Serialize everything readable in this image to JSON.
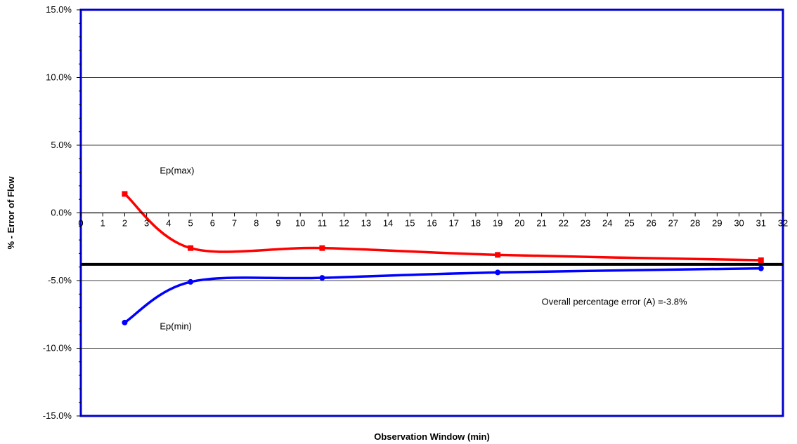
{
  "chart_data": {
    "type": "line",
    "title": "",
    "xlabel": "Observation Window (min)",
    "ylabel": "% - Error of Flow",
    "xlim": [
      0,
      32
    ],
    "ylim": [
      -15,
      15
    ],
    "x_ticks": [
      "0",
      "1",
      "2",
      "3",
      "4",
      "5",
      "6",
      "7",
      "8",
      "9",
      "10",
      "11",
      "12",
      "13",
      "14",
      "15",
      "16",
      "17",
      "18",
      "19",
      "20",
      "21",
      "22",
      "23",
      "24",
      "25",
      "26",
      "27",
      "28",
      "29",
      "30",
      "31",
      "32"
    ],
    "y_ticks": [
      "15.0%",
      "10.0%",
      "5.0%",
      "0.0%",
      "-5.0%",
      "-10.0%",
      "-15.0%"
    ],
    "y_tick_values": [
      15,
      10,
      5,
      0,
      -5,
      -10,
      -15
    ],
    "grid": "horizontal",
    "border_color": "#0000cc",
    "series": [
      {
        "name": "Ep(max)",
        "color": "#ff0000",
        "marker": "square",
        "x": [
          2,
          5,
          11,
          19,
          31
        ],
        "y": [
          1.4,
          -2.6,
          -2.6,
          -3.1,
          -3.5
        ]
      },
      {
        "name": "Ep(min)",
        "color": "#0000ff",
        "marker": "circle",
        "x": [
          2,
          5,
          11,
          19,
          31
        ],
        "y": [
          -8.1,
          -5.1,
          -4.8,
          -4.4,
          -4.1
        ]
      }
    ],
    "reference_line": {
      "y": -3.8,
      "color": "#000000"
    },
    "annotations": {
      "max_label": "Ep(max)",
      "min_label": "Ep(min)",
      "overall": "Overall percentage error (A) =-3.8%"
    }
  }
}
